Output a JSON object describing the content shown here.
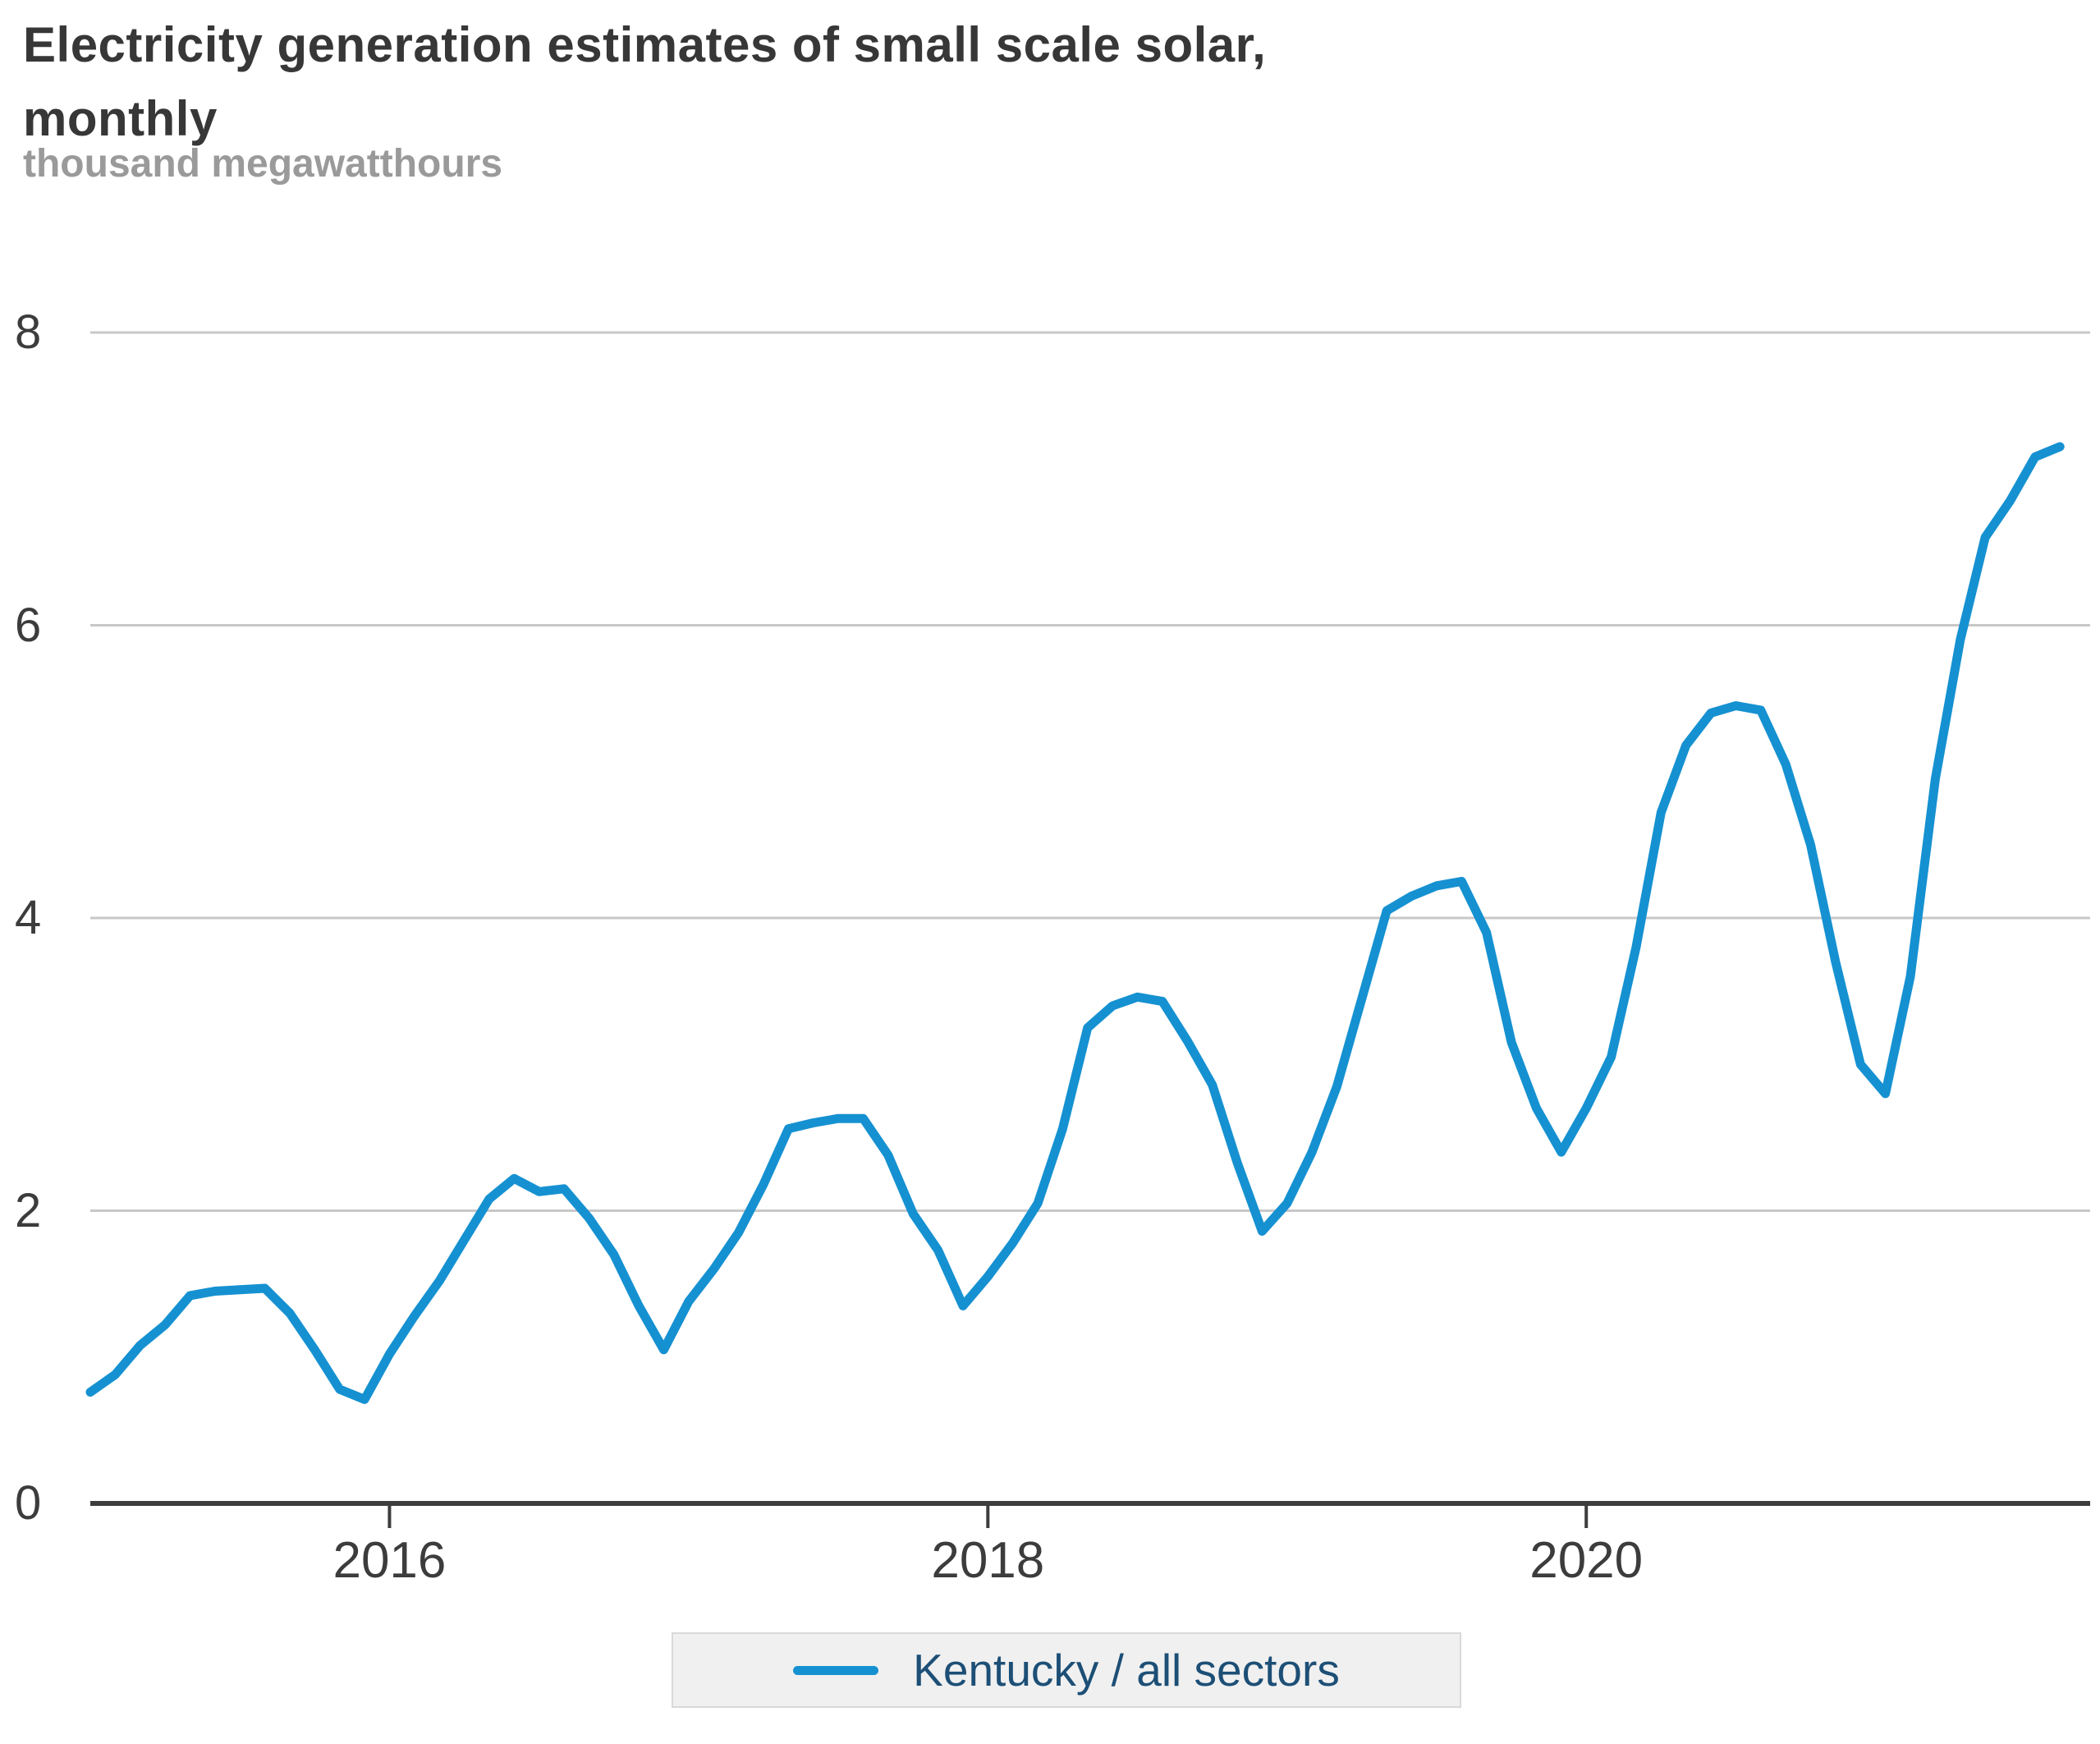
{
  "title_lines": [
    "Electricity generation estimates of small scale solar,",
    "monthly"
  ],
  "subtitle": "thousand megawatthours",
  "legend": {
    "series_label": "Kentucky / all sectors"
  },
  "colors": {
    "line": "#1591d1",
    "grid": "#c8c8c8",
    "axis": "#3d3d3d",
    "title_text": "#373737",
    "subtitle_text": "#9a9a9a",
    "tick_text": "#3c3c3c",
    "legend_text": "#1d4f76",
    "legend_bg": "#f0f0f0",
    "legend_border": "#d9d9d9"
  },
  "chart_data": {
    "type": "line",
    "title": "Electricity generation estimates of small scale solar, monthly",
    "ylabel": "thousand megawatthours",
    "xlabel": "",
    "ylim": [
      0,
      8
    ],
    "y_ticks": [
      0,
      2,
      4,
      6,
      8
    ],
    "x_tick_years": [
      {
        "label": "2016",
        "month_index": 12
      },
      {
        "label": "2018",
        "month_index": 36
      },
      {
        "label": "2020",
        "month_index": 60
      }
    ],
    "grid": "horizontal-only",
    "legend_position": "bottom-center",
    "x_monthly_start": "2015-01",
    "x_monthly_end": "2021-08",
    "series": [
      {
        "name": "Kentucky / all sectors",
        "color": "#1591d1",
        "values": [
          0.76,
          0.88,
          1.08,
          1.22,
          1.42,
          1.45,
          1.46,
          1.47,
          1.3,
          1.05,
          0.78,
          0.71,
          1.02,
          1.28,
          1.52,
          1.8,
          2.08,
          2.22,
          2.13,
          2.15,
          1.95,
          1.7,
          1.35,
          1.05,
          1.38,
          1.6,
          1.85,
          2.18,
          2.56,
          2.6,
          2.63,
          2.63,
          2.38,
          1.98,
          1.73,
          1.35,
          1.55,
          1.78,
          2.05,
          2.56,
          3.25,
          3.4,
          3.46,
          3.43,
          3.16,
          2.86,
          2.33,
          1.86,
          2.05,
          2.4,
          2.85,
          3.45,
          4.05,
          4.15,
          4.22,
          4.25,
          3.9,
          3.15,
          2.7,
          2.4,
          2.7,
          3.05,
          3.8,
          4.72,
          5.18,
          5.4,
          5.45,
          5.42,
          5.05,
          4.5,
          3.7,
          3.0,
          2.8,
          3.6,
          4.95,
          5.9,
          6.6,
          6.85,
          7.15,
          7.22
        ]
      }
    ]
  }
}
